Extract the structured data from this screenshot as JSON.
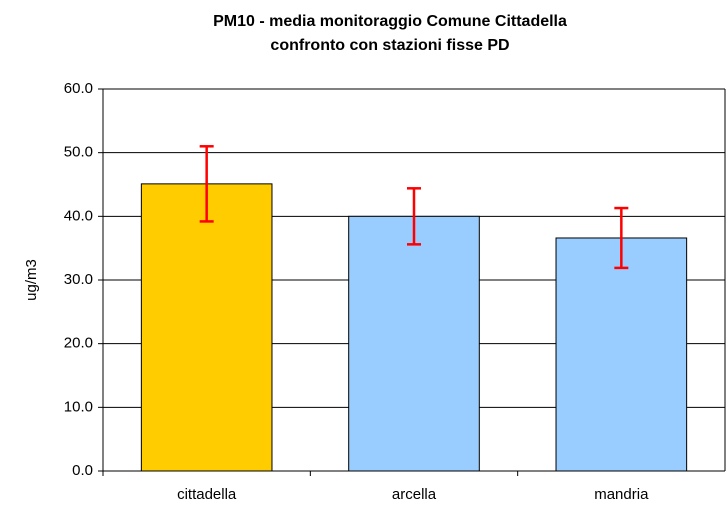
{
  "chart_data": {
    "type": "bar",
    "title": [
      "PM10 - media monitoraggio Comune Cittadella",
      "confronto con stazioni fisse PD"
    ],
    "y_label": "ug/m3",
    "categories": [
      "cittadella",
      "arcella",
      "mandria"
    ],
    "values": [
      45.1,
      40.0,
      36.6
    ],
    "errors": [
      5.9,
      4.4,
      4.7
    ],
    "colors": [
      "#ffcc00",
      "#99ccff",
      "#99ccff"
    ],
    "error_color": "#ff0000",
    "ylim": [
      0,
      60
    ],
    "yticks": [
      {
        "value": 0,
        "label": "0.0"
      },
      {
        "value": 10,
        "label": "10.0"
      },
      {
        "value": 20,
        "label": "20.0"
      },
      {
        "value": 30,
        "label": "30.0"
      },
      {
        "value": 40,
        "label": "40.0"
      },
      {
        "value": 50,
        "label": "50.0"
      },
      {
        "value": 60,
        "label": "60.0"
      }
    ],
    "grid": true
  }
}
